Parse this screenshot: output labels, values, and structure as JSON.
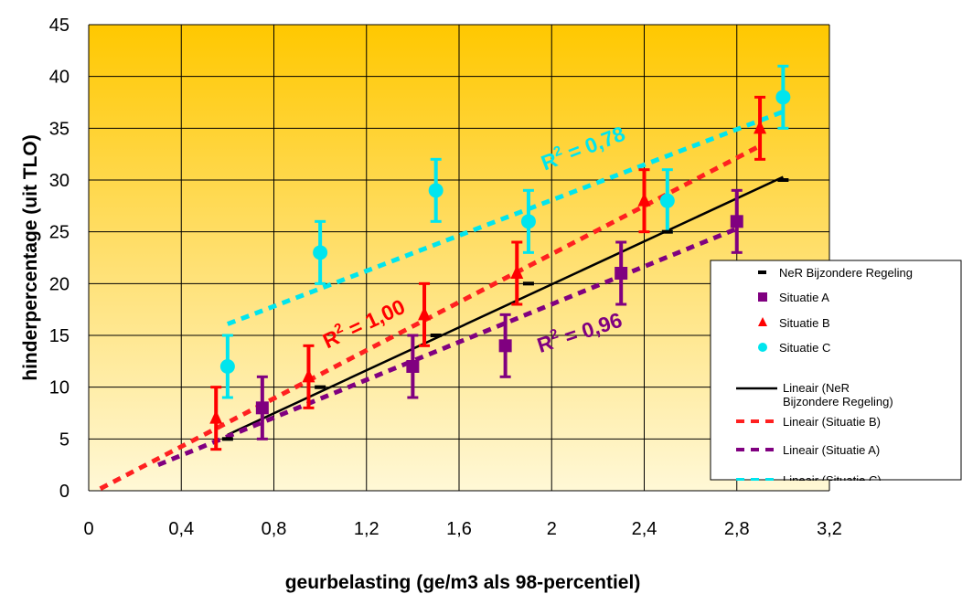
{
  "chart_data": {
    "type": "scatter",
    "xlabel": "geurbelasting (ge/m3 als 98-percentiel)",
    "ylabel": "hinderpercentage (uit TLO)",
    "xlim": [
      0,
      3.2
    ],
    "ylim": [
      0,
      45
    ],
    "x_ticks": [
      "0",
      "0,4",
      "0,8",
      "1,2",
      "1,6",
      "2",
      "2,4",
      "2,8",
      "3,2"
    ],
    "y_ticks": [
      "0",
      "5",
      "10",
      "15",
      "20",
      "25",
      "30",
      "35",
      "40",
      "45"
    ],
    "x_tick_values": [
      0,
      0.4,
      0.8,
      1.2,
      1.6,
      2.0,
      2.4,
      2.8,
      3.2
    ],
    "y_tick_values": [
      0,
      5,
      10,
      15,
      20,
      25,
      30,
      35,
      40,
      45
    ],
    "grid": true,
    "legend_position": "right",
    "background": "gradient yellow",
    "series": [
      {
        "name": "NeR Bijzondere Regeling",
        "marker": "dash",
        "color": "#000000",
        "points": [
          {
            "x": 0.6,
            "y": 5
          },
          {
            "x": 1.0,
            "y": 10
          },
          {
            "x": 1.5,
            "y": 15
          },
          {
            "x": 1.9,
            "y": 20
          },
          {
            "x": 2.5,
            "y": 25
          },
          {
            "x": 3.0,
            "y": 30
          }
        ]
      },
      {
        "name": "Situatie A",
        "marker": "square",
        "color": "#800080",
        "error": 3,
        "points": [
          {
            "x": 0.75,
            "y": 8
          },
          {
            "x": 1.4,
            "y": 12
          },
          {
            "x": 1.8,
            "y": 14
          },
          {
            "x": 2.3,
            "y": 21
          },
          {
            "x": 2.8,
            "y": 26
          }
        ]
      },
      {
        "name": "Situatie B",
        "marker": "triangle",
        "color": "#ff0000",
        "error": 3,
        "points": [
          {
            "x": 0.55,
            "y": 7
          },
          {
            "x": 0.95,
            "y": 11
          },
          {
            "x": 1.45,
            "y": 17
          },
          {
            "x": 1.85,
            "y": 21
          },
          {
            "x": 2.4,
            "y": 28
          },
          {
            "x": 2.9,
            "y": 35
          }
        ]
      },
      {
        "name": "Situatie C",
        "marker": "circle",
        "color": "#00e5ee",
        "error": 3,
        "points": [
          {
            "x": 0.6,
            "y": 12
          },
          {
            "x": 1.0,
            "y": 23
          },
          {
            "x": 1.5,
            "y": 29
          },
          {
            "x": 1.9,
            "y": 26
          },
          {
            "x": 2.5,
            "y": 28
          },
          {
            "x": 3.0,
            "y": 38
          }
        ]
      }
    ],
    "trendlines": [
      {
        "name": "Lineair (NeR Bijzondere Regeling)",
        "color": "#000000",
        "style": "solid",
        "x": [
          0.6,
          3.0
        ],
        "y": [
          5.4,
          30.3
        ]
      },
      {
        "name": "Lineair (Situatie B)",
        "color": "#ff2020",
        "style": "dashed",
        "x": [
          0.05,
          2.9
        ],
        "y": [
          0.2,
          33.3
        ]
      },
      {
        "name": "Lineair (Situatie A)",
        "color": "#800080",
        "style": "dashed",
        "x": [
          0.3,
          2.8
        ],
        "y": [
          2.5,
          25.3
        ]
      },
      {
        "name": "Lineair (Situatie C)",
        "color": "#00e5ee",
        "style": "dashed",
        "x": [
          0.6,
          3.0
        ],
        "y": [
          16.1,
          36.6
        ]
      }
    ],
    "annotations": [
      {
        "text": "R",
        "sup": "2",
        "rest": " = 0,78",
        "color": "#00e5ee",
        "x": 1.97,
        "y": 30.9,
        "angle": -21
      },
      {
        "text": "R",
        "sup": "2",
        "rest": " = 1,00",
        "color": "#ff0000",
        "x": 1.03,
        "y": 13.7,
        "angle": -25
      },
      {
        "text": "R",
        "sup": "2",
        "rest": " = 0,96",
        "color": "#800080",
        "x": 1.95,
        "y": 13.3,
        "angle": -18
      }
    ],
    "legend": [
      {
        "label": "NeR Bijzondere Regeling",
        "kind": "dash",
        "color": "#000000"
      },
      {
        "label": "Situatie A",
        "kind": "square",
        "color": "#800080"
      },
      {
        "label": "Situatie B",
        "kind": "triangle",
        "color": "#ff0000"
      },
      {
        "label": "Situatie C",
        "kind": "circle",
        "color": "#00e5ee"
      },
      {
        "label": "Lineair (NeR Bijzondere Regeling)",
        "kind": "solid",
        "color": "#000000"
      },
      {
        "label": "Lineair (Situatie B)",
        "kind": "dashed",
        "color": "#ff2020"
      },
      {
        "label": "Lineair (Situatie A)",
        "kind": "dashed",
        "color": "#800080"
      },
      {
        "label": "Lineair (Situatie C)",
        "kind": "dashed",
        "color": "#00e5ee"
      }
    ]
  }
}
